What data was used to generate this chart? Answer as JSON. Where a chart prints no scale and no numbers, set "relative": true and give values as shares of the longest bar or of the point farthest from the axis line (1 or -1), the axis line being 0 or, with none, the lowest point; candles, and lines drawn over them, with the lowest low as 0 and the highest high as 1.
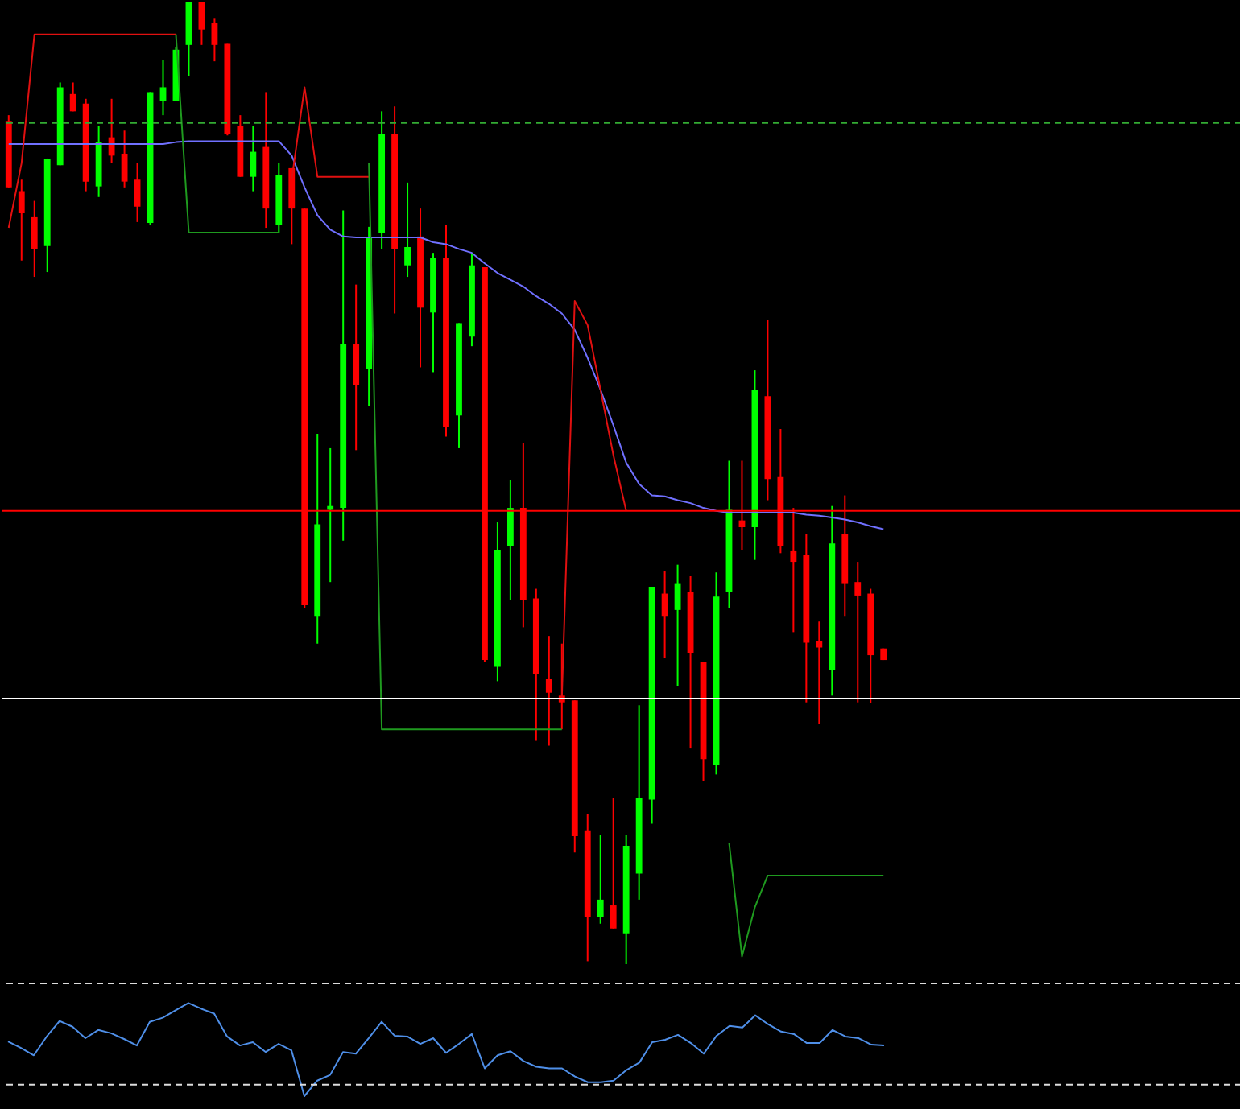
{
  "chart_data": [
    {
      "type": "candlestick",
      "relative": true,
      "categories": [
        null,
        null,
        null,
        null,
        null,
        null,
        null,
        null,
        null,
        null,
        null,
        null,
        null,
        null,
        null,
        null,
        null,
        null,
        null,
        null,
        null,
        null,
        null,
        null,
        null,
        null,
        null,
        null,
        null,
        null,
        null,
        null,
        null,
        null,
        null,
        null,
        null,
        null,
        null,
        null,
        null,
        null,
        null,
        null,
        null,
        null,
        null,
        null,
        null,
        null,
        null,
        null,
        null,
        null,
        null,
        null,
        null,
        null,
        null,
        null,
        null,
        null,
        null,
        null,
        null,
        null,
        null,
        null,
        null
      ],
      "ohlc": [
        [
          0.876,
          0.882,
          0.807,
          0.807
        ],
        [
          0.803,
          0.815,
          0.731,
          0.78
        ],
        [
          0.776,
          0.793,
          0.714,
          0.743
        ],
        [
          0.746,
          0.837,
          0.719,
          0.837
        ],
        [
          0.83,
          0.916,
          0.83,
          0.911
        ],
        [
          0.904,
          0.916,
          0.886,
          0.886
        ],
        [
          0.894,
          0.899,
          0.803,
          0.813
        ],
        [
          0.808,
          0.871,
          0.797,
          0.854
        ],
        [
          0.859,
          0.899,
          0.832,
          0.84
        ],
        [
          0.842,
          0.866,
          0.807,
          0.813
        ],
        [
          0.815,
          0.832,
          0.771,
          0.787
        ],
        [
          0.77,
          0.906,
          0.768,
          0.906
        ],
        [
          0.897,
          0.939,
          0.882,
          0.911
        ],
        [
          0.897,
          0.953,
          0.897,
          0.95
        ],
        [
          0.955,
          1,
          0.923,
          1
        ],
        [
          1,
          1,
          0.955,
          0.971
        ],
        [
          0.978,
          0.983,
          0.938,
          0.955
        ],
        [
          0.956,
          0.956,
          0.861,
          0.862
        ],
        [
          0.871,
          0.882,
          0.818,
          0.818
        ],
        [
          0.818,
          0.871,
          0.803,
          0.844
        ],
        [
          0.849,
          0.906,
          0.765,
          0.785
        ],
        [
          0.768,
          0.832,
          0.76,
          0.82
        ],
        [
          0.827,
          0.827,
          0.748,
          0.785
        ],
        [
          0.785,
          0.785,
          0.37,
          0.373
        ],
        [
          0.361,
          0.551,
          0.333,
          0.457
        ],
        [
          0.472,
          0.536,
          0.397,
          0.476
        ],
        [
          0.474,
          0.783,
          0.44,
          0.644
        ],
        [
          0.644,
          0.706,
          0.534,
          0.602
        ],
        [
          0.618,
          0.766,
          0.58,
          0.755
        ],
        [
          0.76,
          0.886,
          0.743,
          0.862
        ],
        [
          0.862,
          0.891,
          0.676,
          0.743
        ],
        [
          0.726,
          0.812,
          0.714,
          0.745
        ],
        [
          0.756,
          0.785,
          0.62,
          0.682
        ],
        [
          0.677,
          0.739,
          0.615,
          0.734
        ],
        [
          0.734,
          0.768,
          0.548,
          0.558
        ],
        [
          0.57,
          0.666,
          0.536,
          0.666
        ],
        [
          0.652,
          0.739,
          0.642,
          0.726
        ],
        [
          0.724,
          0.724,
          0.314,
          0.316
        ],
        [
          0.309,
          0.459,
          0.294,
          0.43
        ],
        [
          0.434,
          0.503,
          0.378,
          0.474
        ],
        [
          0.474,
          0.541,
          0.35,
          0.378
        ],
        [
          0.38,
          0.39,
          0.232,
          0.301
        ],
        [
          0.296,
          0.341,
          0.227,
          0.282
        ],
        [
          0.279,
          0.333,
          0.244,
          0.272
        ],
        [
          0.274,
          0.274,
          0.116,
          0.133
        ],
        [
          0.139,
          0.156,
          0.003,
          0.049
        ],
        [
          0.049,
          0.134,
          0.042,
          0.067
        ],
        [
          0.061,
          0.173,
          0.037,
          0.037
        ],
        [
          0.032,
          0.134,
          0,
          0.123
        ],
        [
          0.094,
          0.269,
          0.067,
          0.173
        ],
        [
          0.171,
          0.392,
          0.146,
          0.392
        ],
        [
          0.385,
          0.408,
          0.318,
          0.361
        ],
        [
          0.368,
          0.415,
          0.289,
          0.395
        ],
        [
          0.387,
          0.403,
          0.224,
          0.323
        ],
        [
          0.314,
          0.314,
          0.19,
          0.213
        ],
        [
          0.207,
          0.407,
          0.197,
          0.382
        ],
        [
          0.387,
          0.523,
          0.37,
          0.472
        ],
        [
          0.461,
          0.523,
          0.43,
          0.454
        ],
        [
          0.454,
          0.617,
          0.42,
          0.597
        ],
        [
          0.59,
          0.669,
          0.482,
          0.504
        ],
        [
          0.506,
          0.556,
          0.427,
          0.434
        ],
        [
          0.429,
          0.474,
          0.345,
          0.418
        ],
        [
          0.425,
          0.447,
          0.272,
          0.334
        ],
        [
          0.336,
          0.356,
          0.25,
          0.329
        ],
        [
          0.306,
          0.476,
          0.279,
          0.437
        ],
        [
          0.447,
          0.487,
          0.361,
          0.395
        ],
        [
          0.397,
          0.418,
          0.272,
          0.383
        ],
        [
          0.385,
          0.39,
          0.271,
          0.321
        ],
        [
          0.328,
          0.328,
          0.316,
          0.316
        ]
      ],
      "colors": [
        "#ff0000",
        "#ff0000",
        "#ff0000",
        "#00ff00",
        "#00ff00",
        "#ff0000",
        "#ff0000",
        "#00ff00",
        "#ff0000",
        "#ff0000",
        "#ff0000",
        "#00ff00",
        "#00ff00",
        "#00ff00",
        "#00ff00",
        "#ff0000",
        "#ff0000",
        "#ff0000",
        "#ff0000",
        "#00ff00",
        "#ff0000",
        "#00ff00",
        "#ff0000",
        "#ff0000",
        "#00ff00",
        "#00ff00",
        "#00ff00",
        "#ff0000",
        "#00ff00",
        "#00ff00",
        "#ff0000",
        "#00ff00",
        "#ff0000",
        "#00ff00",
        "#ff0000",
        "#00ff00",
        "#00ff00",
        "#ff0000",
        "#00ff00",
        "#00ff00",
        "#ff0000",
        "#ff0000",
        "#ff0000",
        "#ff0000",
        "#ff0000",
        "#ff0000",
        "#00ff00",
        "#ff0000",
        "#00ff00",
        "#00ff00",
        "#00ff00",
        "#ff0000",
        "#00ff00",
        "#ff0000",
        "#ff0000",
        "#00ff00",
        "#00ff00",
        "#ff0000",
        "#00ff00",
        "#ff0000",
        "#ff0000",
        "#ff0000",
        "#ff0000",
        "#ff0000",
        "#00ff00",
        "#ff0000",
        "#ff0000",
        "#ff0000",
        "#ff0000"
      ],
      "series": [
        {
          "type": "line",
          "color": "#7070ff",
          "values": [
            0.852,
            0.852,
            0.852,
            0.852,
            0.852,
            0.852,
            0.852,
            0.852,
            0.852,
            0.852,
            0.852,
            0.852,
            0.852,
            0.854,
            0.855,
            0.855,
            0.855,
            0.855,
            0.855,
            0.855,
            0.855,
            0.855,
            0.84,
            0.807,
            0.778,
            0.763,
            0.756,
            0.755,
            0.755,
            0.755,
            0.755,
            0.755,
            0.755,
            0.75,
            0.748,
            0.743,
            0.739,
            0.728,
            0.718,
            0.711,
            0.704,
            0.694,
            0.686,
            0.676,
            0.659,
            0.63,
            0.597,
            0.56,
            0.521,
            0.499,
            0.487,
            0.486,
            0.482,
            0.479,
            0.474,
            0.471,
            0.469,
            0.469,
            0.469,
            0.469,
            0.469,
            0.469,
            0.467,
            0.466,
            0.464,
            0.462,
            0.459,
            0.455,
            0.452
          ]
        },
        {
          "type": "line",
          "color": "#e01010",
          "values": [
            0.765,
            0.832,
            0.966,
            0.966,
            0.966,
            0.966,
            0.966,
            0.966,
            0.966,
            0.966,
            0.966,
            0.966,
            0.966,
            0.966,
            null,
            null,
            null,
            null,
            null,
            null,
            null,
            null,
            0.815,
            0.911,
            0.818,
            0.818,
            0.818,
            0.818,
            0.818,
            null,
            null,
            null,
            null,
            null,
            null,
            null,
            null,
            null,
            null,
            null,
            null,
            null,
            null,
            0.277,
            0.689,
            0.664,
            0.597,
            0.529,
            0.471,
            null,
            null,
            null,
            null,
            null,
            null,
            null,
            null,
            null,
            null,
            null,
            null,
            null,
            null,
            null,
            null,
            null,
            null,
            null,
            null
          ]
        },
        {
          "type": "line",
          "color": "#1f9a1f",
          "values": [
            null,
            null,
            null,
            null,
            null,
            null,
            null,
            null,
            null,
            null,
            null,
            null,
            null,
            0.966,
            0.76,
            0.76,
            0.76,
            0.76,
            0.76,
            0.76,
            0.76,
            0.76,
            null,
            null,
            null,
            null,
            null,
            null,
            0.832,
            0.244,
            0.244,
            0.244,
            0.244,
            0.244,
            0.244,
            0.244,
            0.244,
            0.244,
            0.244,
            0.244,
            0.244,
            0.244,
            0.244,
            0.244,
            null,
            null,
            null,
            null,
            null,
            null,
            null,
            null,
            null,
            null,
            null,
            null,
            0.126,
            0.008,
            0.059,
            0.092,
            0.092,
            0.092,
            0.092,
            0.092,
            0.092,
            0.092,
            0.092,
            0.092,
            0.092
          ]
        }
      ],
      "ref_lines": [
        {
          "axis": "y",
          "value": 0.874,
          "color": "#33aa33",
          "line_style": "dashed"
        },
        {
          "axis": "y",
          "value": 0.471,
          "color": "#ff0000",
          "line_style": "solid"
        },
        {
          "axis": "y",
          "value": 0.276,
          "color": "#ffffff",
          "line_style": "solid"
        }
      ]
    },
    {
      "type": "line",
      "relative": true,
      "categories": [
        null,
        null,
        null,
        null,
        null,
        null,
        null,
        null,
        null,
        null,
        null,
        null,
        null,
        null,
        null,
        null,
        null,
        null,
        null,
        null,
        null,
        null,
        null,
        null,
        null,
        null,
        null,
        null,
        null,
        null,
        null,
        null,
        null,
        null,
        null,
        null,
        null,
        null,
        null,
        null,
        null,
        null,
        null,
        null,
        null,
        null,
        null,
        null,
        null,
        null,
        null,
        null,
        null,
        null,
        null,
        null,
        null,
        null,
        null,
        null,
        null,
        null,
        null,
        null,
        null,
        null,
        null,
        null,
        null
      ],
      "series": [
        {
          "color": "#4f8fe8",
          "values": [
            0.53,
            0.45,
            0.36,
            0.59,
            0.78,
            0.71,
            0.57,
            0.67,
            0.63,
            0.56,
            0.48,
            0.77,
            0.82,
            0.91,
            1,
            0.93,
            0.87,
            0.59,
            0.48,
            0.52,
            0.4,
            0.5,
            0.42,
            -0.14,
            0.05,
            0.12,
            0.4,
            0.38,
            0.57,
            0.77,
            0.6,
            0.59,
            0.5,
            0.57,
            0.39,
            0.5,
            0.62,
            0.2,
            0.36,
            0.41,
            0.29,
            0.22,
            0.2,
            0.2,
            0.1,
            0.03,
            0.03,
            0.05,
            0.18,
            0.27,
            0.52,
            0.55,
            0.61,
            0.51,
            0.38,
            0.6,
            0.72,
            0.7,
            0.85,
            0.74,
            0.65,
            0.62,
            0.51,
            0.51,
            0.67,
            0.59,
            0.57,
            0.49,
            0.48
          ]
        }
      ],
      "ref_lines": [
        {
          "axis": "y",
          "value": 1.24,
          "color": "#dddddd",
          "line_style": "dashed"
        },
        {
          "axis": "y",
          "value": 0,
          "color": "#dddddd",
          "line_style": "dashed"
        }
      ]
    }
  ]
}
